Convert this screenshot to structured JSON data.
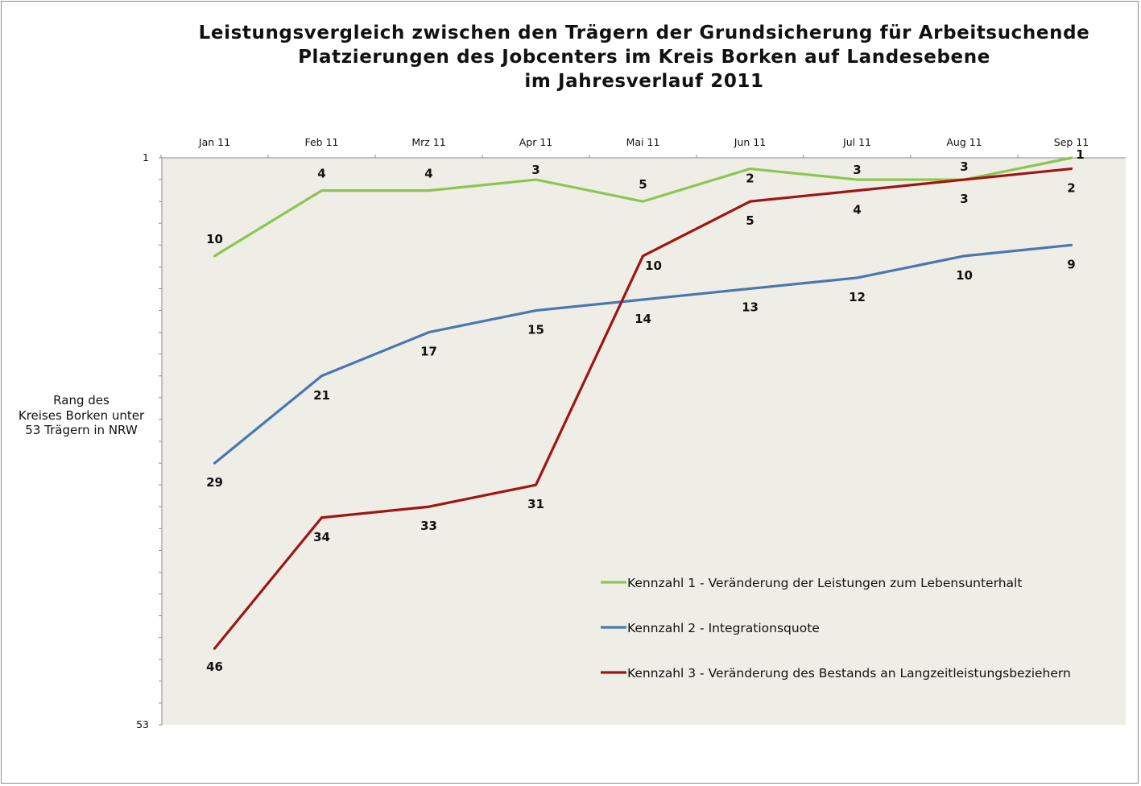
{
  "title_lines": [
    "Leistungsvergleich zwischen den Trägern der Grundsicherung für Arbeitsuchende",
    "Platzierungen des Jobcenters im Kreis Borken auf Landesebene",
    "im Jahresverlauf 2011"
  ],
  "ylabel_lines": [
    "Rang des",
    "Kreises Borken unter",
    "53 Trägern in NRW"
  ],
  "chart_data": {
    "type": "line",
    "categories": [
      "Jan 11",
      "Feb 11",
      "Mrz 11",
      "Apr 11",
      "Mai 11",
      "Jun 11",
      "Jul 11",
      "Aug 11",
      "Sep 11"
    ],
    "ylim": [
      1,
      53
    ],
    "y_inverted": true,
    "y_tick_labels": [
      "1",
      "53"
    ],
    "x_axis_position": "top",
    "plot_background": "#efeee6",
    "grid": false,
    "legend_position": "bottom-right",
    "series": [
      {
        "name": "Kennzahl 1 - Veränderung der Leistungen zum Lebensunterhalt",
        "color": "#8cc650",
        "values": [
          10,
          4,
          4,
          3,
          5,
          2,
          3,
          3,
          1
        ],
        "labels": [
          "10",
          "4",
          "4",
          "3",
          "5",
          "2",
          "3",
          "3",
          "1"
        ]
      },
      {
        "name": "Kennzahl 2 - Integrationsquote",
        "color": "#4a77b0",
        "values": [
          29,
          21,
          17,
          15,
          14,
          13,
          12,
          10,
          9
        ],
        "labels": [
          "29",
          "21",
          "17",
          "15",
          "14",
          "13",
          "12",
          "10",
          "9"
        ]
      },
      {
        "name": "Kennzahl 3 - Veränderung des Bestands an Langzeitleistungsbeziehern",
        "color": "#a01414",
        "values": [
          46,
          34,
          33,
          31,
          10,
          5,
          4,
          3,
          2
        ],
        "labels": [
          "46",
          "34",
          "33",
          "31",
          "10",
          "5",
          "4",
          "3",
          "2"
        ]
      }
    ]
  }
}
